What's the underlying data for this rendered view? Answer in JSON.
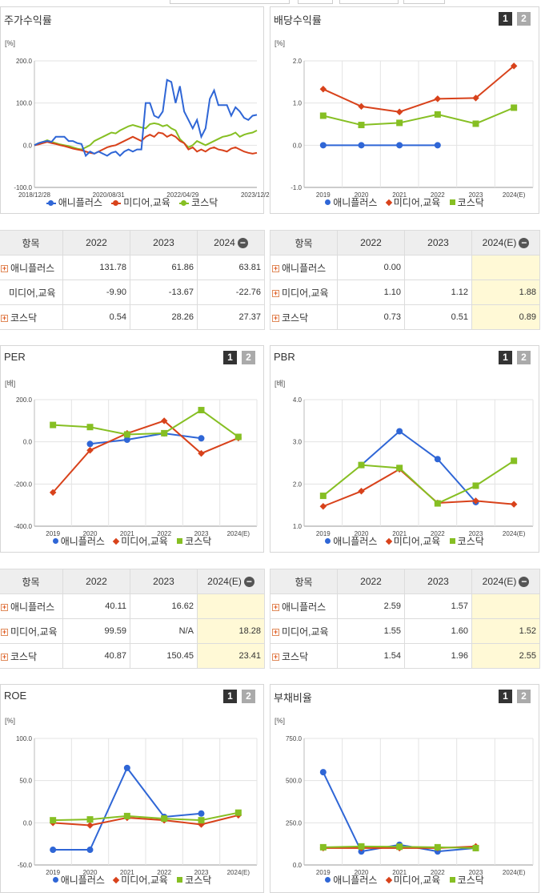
{
  "colors": {
    "s1": "#2f66d6",
    "s2": "#d8421b",
    "s3": "#86bf23"
  },
  "legend": [
    "애니플러스",
    "미디어,교육",
    "코스닥"
  ],
  "panels": {
    "stock": {
      "title": "주가수익률",
      "unit": "[%]"
    },
    "div": {
      "title": "배당수익률",
      "unit": "[%]",
      "btn1": "1",
      "btn2": "2"
    },
    "per": {
      "title": "PER",
      "unit": "[배]",
      "btn1": "1",
      "btn2": "2"
    },
    "pbr": {
      "title": "PBR",
      "unit": "[배]",
      "btn1": "1",
      "btn2": "2"
    },
    "roe": {
      "title": "ROE",
      "unit": "[%]",
      "btn1": "1",
      "btn2": "2"
    },
    "debt": {
      "title": "부채비율",
      "unit": "[%]",
      "btn1": "1",
      "btn2": "2"
    }
  },
  "tables": {
    "stock": {
      "h": [
        "항목",
        "2022",
        "2023",
        "2024"
      ],
      "rows": [
        [
          "애니플러스",
          "131.78",
          "61.86",
          "63.81"
        ],
        [
          "미디어,교육",
          "-9.90",
          "-13.67",
          "-22.76"
        ],
        [
          "코스닥",
          "0.54",
          "28.26",
          "27.37"
        ]
      ]
    },
    "div": {
      "h": [
        "항목",
        "2022",
        "2023",
        "2024(E)"
      ],
      "rows": [
        [
          "애니플러스",
          "0.00",
          "",
          ""
        ],
        [
          "미디어,교육",
          "1.10",
          "1.12",
          "1.88"
        ],
        [
          "코스닥",
          "0.73",
          "0.51",
          "0.89"
        ]
      ]
    },
    "per": {
      "h": [
        "항목",
        "2022",
        "2023",
        "2024(E)"
      ],
      "rows": [
        [
          "애니플러스",
          "40.11",
          "16.62",
          ""
        ],
        [
          "미디어,교육",
          "99.59",
          "N/A",
          "18.28"
        ],
        [
          "코스닥",
          "40.87",
          "150.45",
          "23.41"
        ]
      ]
    },
    "pbr": {
      "h": [
        "항목",
        "2022",
        "2023",
        "2024(E)"
      ],
      "rows": [
        [
          "애니플러스",
          "2.59",
          "1.57",
          ""
        ],
        [
          "미디어,교육",
          "1.55",
          "1.60",
          "1.52"
        ],
        [
          "코스닥",
          "1.54",
          "1.96",
          "2.55"
        ]
      ]
    }
  },
  "chart_data": [
    {
      "id": "stock",
      "type": "line",
      "title": "주가수익률",
      "ylim": [
        -100,
        200
      ],
      "yticks": [
        "200.0",
        "100.0",
        "0.0",
        "-100.0"
      ],
      "xticks": [
        "2018/12/28",
        "2020/08/31",
        "2022/04/29",
        "2023/12/28"
      ],
      "series": [
        {
          "name": "애니플러스",
          "values": [
            0,
            5,
            8,
            10,
            8,
            20,
            20,
            20,
            10,
            10,
            5,
            3,
            -25,
            -15,
            -20,
            -15,
            -20,
            -25,
            -18,
            -15,
            -25,
            -15,
            -10,
            -15,
            -10,
            -10,
            100,
            100,
            70,
            65,
            80,
            155,
            150,
            100,
            140,
            80,
            60,
            40,
            60,
            20,
            40,
            110,
            130,
            95,
            95,
            95,
            70,
            90,
            80,
            65,
            60,
            70,
            72
          ]
        },
        {
          "name": "미디어,교육",
          "values": [
            0,
            2,
            5,
            8,
            5,
            3,
            0,
            -2,
            -5,
            -8,
            -10,
            -12,
            -15,
            -18,
            -20,
            -15,
            -10,
            -5,
            -2,
            0,
            5,
            10,
            15,
            20,
            15,
            10,
            20,
            25,
            20,
            30,
            28,
            20,
            25,
            20,
            10,
            5,
            -10,
            -5,
            -15,
            -10,
            -15,
            -8,
            -5,
            -10,
            -12,
            -15,
            -8,
            -5,
            -10,
            -15,
            -18,
            -20,
            -18
          ]
        },
        {
          "name": "코스닥",
          "values": [
            0,
            5,
            8,
            12,
            8,
            5,
            2,
            0,
            -2,
            -5,
            -8,
            -10,
            -5,
            0,
            10,
            15,
            20,
            25,
            30,
            28,
            35,
            40,
            45,
            48,
            45,
            42,
            40,
            50,
            52,
            50,
            45,
            48,
            40,
            35,
            15,
            5,
            -5,
            0,
            10,
            5,
            0,
            5,
            10,
            15,
            20,
            22,
            25,
            30,
            20,
            25,
            28,
            30,
            35
          ]
        }
      ]
    },
    {
      "id": "div",
      "type": "line",
      "title": "배당수익률",
      "ylim": [
        -1,
        2
      ],
      "yticks": [
        "2.0",
        "1.0",
        "0.0",
        "-1.0"
      ],
      "categories": [
        "2019",
        "2020",
        "2021",
        "2022",
        "2023",
        "2024(E)"
      ],
      "series": [
        {
          "name": "애니플러스",
          "values": [
            0,
            0,
            0,
            0,
            null,
            null
          ]
        },
        {
          "name": "미디어,교육",
          "values": [
            1.33,
            0.92,
            0.79,
            1.1,
            1.12,
            1.88
          ]
        },
        {
          "name": "코스닥",
          "values": [
            0.7,
            0.48,
            0.53,
            0.73,
            0.51,
            0.89
          ]
        }
      ]
    },
    {
      "id": "per",
      "type": "line",
      "title": "PER",
      "ylim": [
        -400,
        200
      ],
      "yticks": [
        "200.0",
        "0.0",
        "-200.0",
        "-400.0"
      ],
      "categories": [
        "2019",
        "2020",
        "2021",
        "2022",
        "2023",
        "2024(E)"
      ],
      "series": [
        {
          "name": "애니플러스",
          "values": [
            null,
            -10,
            10,
            40.11,
            16.62,
            null
          ]
        },
        {
          "name": "미디어,교육",
          "values": [
            -240,
            -40,
            40,
            99.59,
            -55,
            18.28
          ]
        },
        {
          "name": "코스닥",
          "values": [
            80,
            70,
            35,
            40.87,
            150.45,
            23.41
          ]
        }
      ]
    },
    {
      "id": "pbr",
      "type": "line",
      "title": "PBR",
      "ylim": [
        1,
        4
      ],
      "yticks": [
        "4.0",
        "3.0",
        "2.0",
        "1.0"
      ],
      "categories": [
        "2019",
        "2020",
        "2021",
        "2022",
        "2023",
        "2024(E)"
      ],
      "series": [
        {
          "name": "애니플러스",
          "values": [
            null,
            2.45,
            3.25,
            2.59,
            1.57,
            null
          ]
        },
        {
          "name": "미디어,교육",
          "values": [
            1.47,
            1.83,
            2.35,
            1.55,
            1.6,
            1.52
          ]
        },
        {
          "name": "코스닥",
          "values": [
            1.72,
            2.45,
            2.38,
            1.54,
            1.96,
            2.55
          ]
        }
      ]
    },
    {
      "id": "roe",
      "type": "line",
      "title": "ROE",
      "ylim": [
        -50,
        100
      ],
      "yticks": [
        "100.0",
        "50.0",
        "0.0",
        "-50.0"
      ],
      "categories": [
        "2019",
        "2020",
        "2021",
        "2022",
        "2023",
        "2024(E)"
      ],
      "series": [
        {
          "name": "애니플러스",
          "values": [
            -32,
            -32,
            65,
            7,
            11,
            null
          ]
        },
        {
          "name": "미디어,교육",
          "values": [
            0,
            -3,
            6,
            3,
            -2,
            9
          ]
        },
        {
          "name": "코스닥",
          "values": [
            3,
            4,
            8,
            5,
            3,
            12
          ]
        }
      ]
    },
    {
      "id": "debt",
      "type": "line",
      "title": "부채비율",
      "ylim": [
        0,
        750
      ],
      "yticks": [
        "750.0",
        "500.0",
        "250.0",
        "0.0"
      ],
      "categories": [
        "2019",
        "2020",
        "2021",
        "2022",
        "2023",
        "2024(E)"
      ],
      "series": [
        {
          "name": "애니플러스",
          "values": [
            550,
            80,
            120,
            80,
            100,
            null
          ]
        },
        {
          "name": "미디어,교육",
          "values": [
            100,
            100,
            100,
            100,
            110,
            null
          ]
        },
        {
          "name": "코스닥",
          "values": [
            105,
            110,
            108,
            105,
            100,
            null
          ]
        }
      ]
    }
  ]
}
